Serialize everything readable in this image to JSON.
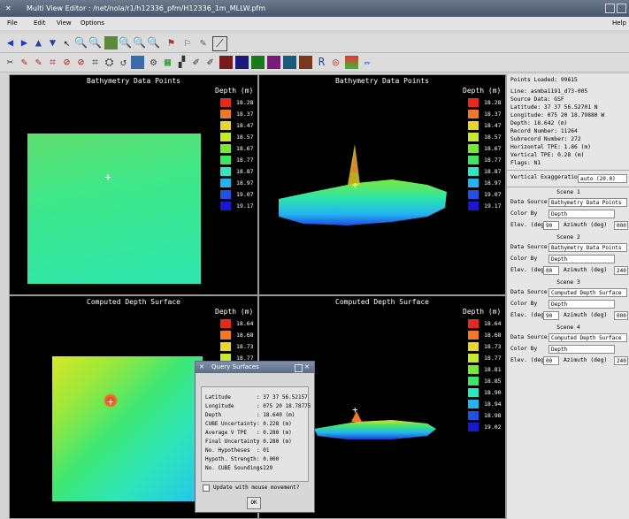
{
  "window": {
    "title": "Multi View Editor  :  /net/nola/r1/h12336_pfm/H12336_1m_MLLW.pfm"
  },
  "menu": {
    "file": "File",
    "edit": "Edit",
    "view": "View",
    "options": "Options",
    "help": "Help"
  },
  "views": {
    "v1": {
      "title": "Bathymetry Data Points",
      "legend_title": "Depth (m)"
    },
    "v2": {
      "title": "Bathymetry Data Points",
      "legend_title": "Depth (m)"
    },
    "v3": {
      "title": "Computed Depth Surface",
      "legend_title": "Depth (m)"
    },
    "v4": {
      "title": "Computed Depth Surface",
      "legend_title": "Depth (m)"
    }
  },
  "legend_points": {
    "labels": [
      "18.28",
      "18.37",
      "18.47",
      "18.57",
      "18.67",
      "18.77",
      "18.87",
      "18.97",
      "19.07",
      "19.17"
    ],
    "colors": [
      "#e8281e",
      "#f07828",
      "#e8d628",
      "#c8e82a",
      "#78e832",
      "#3ae862",
      "#2ae8c0",
      "#22b4f0",
      "#2050e6",
      "#1818d2"
    ]
  },
  "legend_surface": {
    "labels": [
      "18.64",
      "18.68",
      "18.73",
      "18.77",
      "18.81",
      "18.85",
      "18.90",
      "18.94",
      "18.98",
      "19.02"
    ],
    "colors": [
      "#e8281e",
      "#f07828",
      "#e8d628",
      "#c8e82a",
      "#78e832",
      "#3ae862",
      "#2ae8c0",
      "#22b4f0",
      "#2050e6",
      "#1818d2"
    ]
  },
  "info": {
    "points_loaded": "Points Loaded: 99615",
    "line": "Line: asmba1191_d73-005",
    "source": "Source Data: GSF",
    "latitude": "Latitude:  37 37 56.52701 N",
    "longitude": "Longitude: 075 20 18.79880 W",
    "depth": "Depth: 18.642 (m)",
    "record": "Record Number: 11264",
    "subrecord": "Subrecord Number: 272",
    "htpe": "Horizontal TPE: 1.86 (m)",
    "vtpe": "Vertical TPE: 0.28 (m)",
    "flags": "Flags: N1"
  },
  "exaggeration": {
    "label": "Vertical Exaggeration",
    "value": "auto (20.0)"
  },
  "labels": {
    "data_source": "Data Source",
    "color_by": "Color By",
    "elev": "Elev. (deg)",
    "azimuth": "Azimuth (deg)"
  },
  "scenes": [
    {
      "title": "Scene 1",
      "data_source": "Bathymetry Data Points",
      "color_by": "Depth",
      "elev": "90",
      "azimuth": "000"
    },
    {
      "title": "Scene 2",
      "data_source": "Bathymetry Data Points",
      "color_by": "Depth",
      "elev": "00",
      "azimuth": "240"
    },
    {
      "title": "Scene 3",
      "data_source": "Computed Depth Surface",
      "color_by": "Depth",
      "elev": "90",
      "azimuth": "000"
    },
    {
      "title": "Scene 4",
      "data_source": "Computed Depth Surface",
      "color_by": "Depth",
      "elev": "00",
      "azimuth": "240"
    }
  ],
  "dialog": {
    "title": "Query Surfaces",
    "rows": [
      {
        "label": "Latitude",
        "value": ": 37 37 56.52157"
      },
      {
        "label": "Longitude",
        "value": ": 075 20 18.78775"
      },
      {
        "label": "Depth",
        "value": ": 18.640 (m)"
      },
      {
        "label": "CUBE Uncertainty",
        "value": ": 0.228 (m)"
      },
      {
        "label": "Average V TPE",
        "value": ": 0.280 (m)"
      },
      {
        "label": "Final Uncertainty",
        "value": ": 0.280 (m)"
      },
      {
        "label": "No. Hypotheses",
        "value": ": 01"
      },
      {
        "label": "Hypoth. Strength",
        "value": ": 0.000"
      },
      {
        "label": "No. CUBE Soundings",
        "value": ": 229"
      }
    ],
    "checkbox_label": "Update with mouse movement?",
    "ok": "OK"
  }
}
